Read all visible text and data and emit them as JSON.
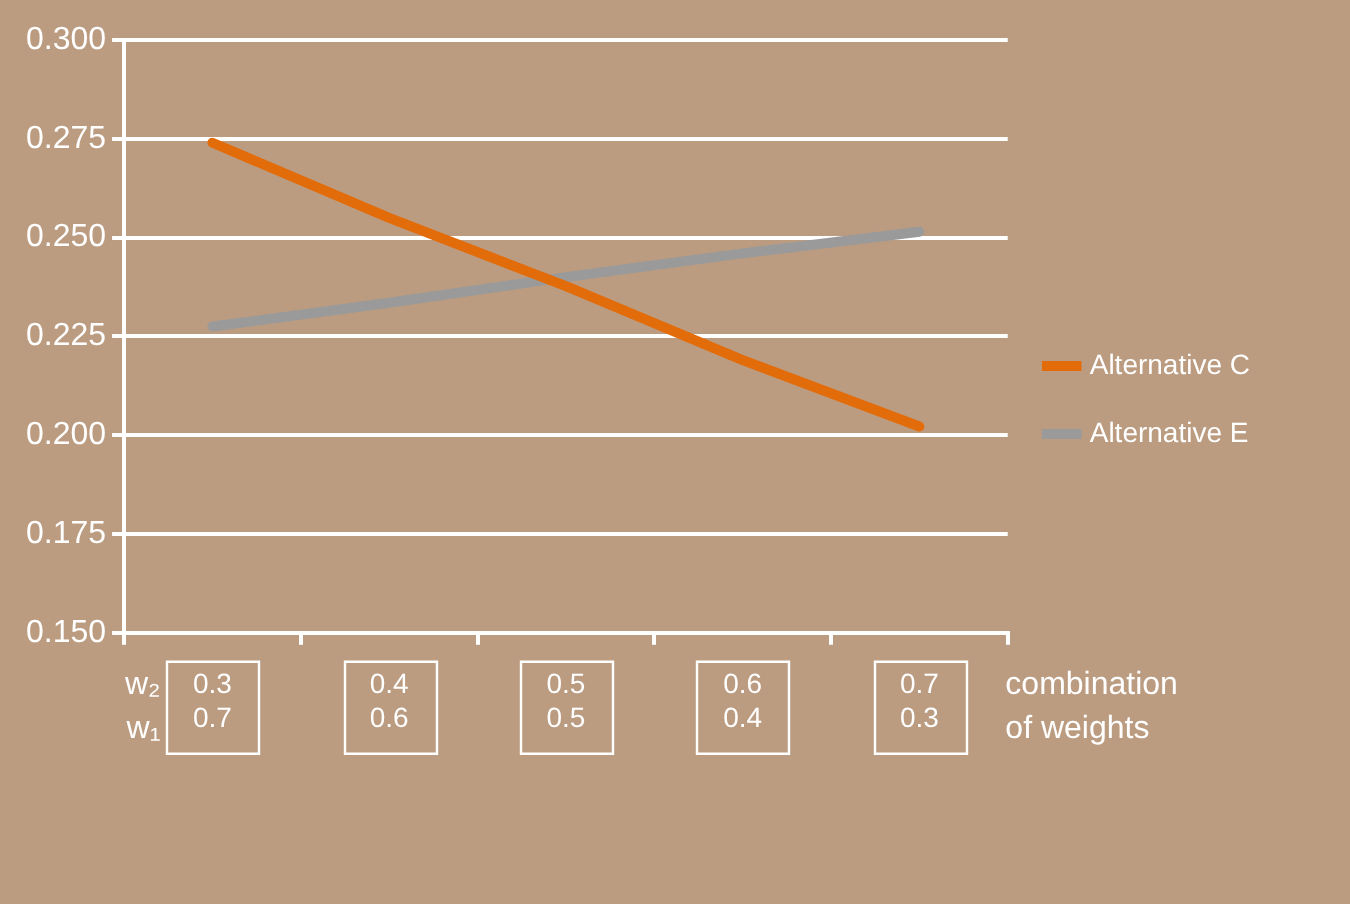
{
  "chart_data": {
    "type": "line",
    "categories": [
      "0.3\n0.7",
      "0.4\n0.6",
      "0.5\n0.5",
      "0.6\n0.4",
      "0.7\n0.3"
    ],
    "series": [
      {
        "name": "Alternative C",
        "color": "#e36c0a",
        "values": [
          0.274,
          0.255,
          0.2377,
          0.219,
          0.2022
        ]
      },
      {
        "name": "Alternative E",
        "color": "#9a9a9a",
        "values": [
          0.2275,
          0.2335,
          0.24,
          0.246,
          0.2515
        ]
      }
    ],
    "xlabel": "combination\nof weights",
    "annotations": [
      "w₂",
      "w₁"
    ],
    "ylim": [
      0.15,
      0.3
    ],
    "yticks": [
      {
        "value": 0.15,
        "label": "0.150"
      },
      {
        "value": 0.175,
        "label": "0.175"
      },
      {
        "value": 0.2,
        "label": "0.200"
      },
      {
        "value": 0.225,
        "label": "0.225"
      },
      {
        "value": 0.25,
        "label": "0.250"
      },
      {
        "value": 0.275,
        "label": "0.275"
      },
      {
        "value": 0.3,
        "label": "0.300"
      }
    ],
    "grid": "y",
    "legend": "right",
    "marker": "none",
    "line_style": "solid"
  }
}
